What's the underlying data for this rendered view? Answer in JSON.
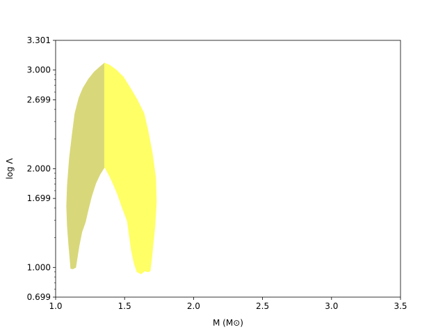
{
  "chart_data": {
    "type": "area",
    "xlabel": "M (M⊙)",
    "ylabel": "log Λ",
    "xlim": [
      1.0,
      3.5
    ],
    "ylim": [
      0.699,
      3.301
    ],
    "x_ticks": [
      1.0,
      1.5,
      2.0,
      2.5,
      3.0,
      3.5
    ],
    "x_tick_labels": [
      "1.0",
      "1.5",
      "2.0",
      "2.5",
      "3.0",
      "3.5"
    ],
    "y_ticks": [
      0.699,
      1.0,
      1.699,
      2.0,
      2.699,
      3.0,
      3.301
    ],
    "y_tick_labels": [
      "0.699",
      "1.000",
      "1.699",
      "2.000",
      "2.699",
      "3.000",
      "3.301"
    ],
    "grid": false,
    "series": [
      {
        "color": "#d8d87a",
        "points": [
          [
            1.355,
            3.07
          ],
          [
            1.32,
            3.03
          ],
          [
            1.28,
            2.98
          ],
          [
            1.24,
            2.91
          ],
          [
            1.2,
            2.82
          ],
          [
            1.17,
            2.72
          ],
          [
            1.14,
            2.56
          ],
          [
            1.12,
            2.34
          ],
          [
            1.1,
            2.1
          ],
          [
            1.085,
            1.83
          ],
          [
            1.08,
            1.62
          ],
          [
            1.085,
            1.42
          ],
          [
            1.095,
            1.24
          ],
          [
            1.105,
            1.08
          ],
          [
            1.11,
            0.99
          ],
          [
            1.125,
            0.985
          ],
          [
            1.145,
            1.0
          ],
          [
            1.155,
            1.09
          ],
          [
            1.17,
            1.22
          ],
          [
            1.19,
            1.36
          ],
          [
            1.215,
            1.46
          ],
          [
            1.235,
            1.58
          ],
          [
            1.26,
            1.72
          ],
          [
            1.29,
            1.85
          ],
          [
            1.32,
            1.94
          ],
          [
            1.355,
            2.02
          ],
          [
            1.355,
            3.07
          ]
        ]
      },
      {
        "color": "#ffff66",
        "points": [
          [
            1.355,
            3.07
          ],
          [
            1.39,
            3.05
          ],
          [
            1.44,
            3.0
          ],
          [
            1.49,
            2.93
          ],
          [
            1.54,
            2.82
          ],
          [
            1.59,
            2.7
          ],
          [
            1.64,
            2.56
          ],
          [
            1.67,
            2.38
          ],
          [
            1.7,
            2.16
          ],
          [
            1.725,
            1.91
          ],
          [
            1.73,
            1.66
          ],
          [
            1.72,
            1.42
          ],
          [
            1.705,
            1.22
          ],
          [
            1.695,
            1.08
          ],
          [
            1.685,
            0.965
          ],
          [
            1.67,
            0.955
          ],
          [
            1.645,
            0.965
          ],
          [
            1.62,
            0.935
          ],
          [
            1.59,
            0.955
          ],
          [
            1.57,
            1.04
          ],
          [
            1.55,
            1.17
          ],
          [
            1.535,
            1.32
          ],
          [
            1.52,
            1.47
          ],
          [
            1.48,
            1.62
          ],
          [
            1.45,
            1.74
          ],
          [
            1.42,
            1.84
          ],
          [
            1.39,
            1.93
          ],
          [
            1.355,
            2.02
          ],
          [
            1.355,
            3.07
          ]
        ]
      }
    ]
  }
}
